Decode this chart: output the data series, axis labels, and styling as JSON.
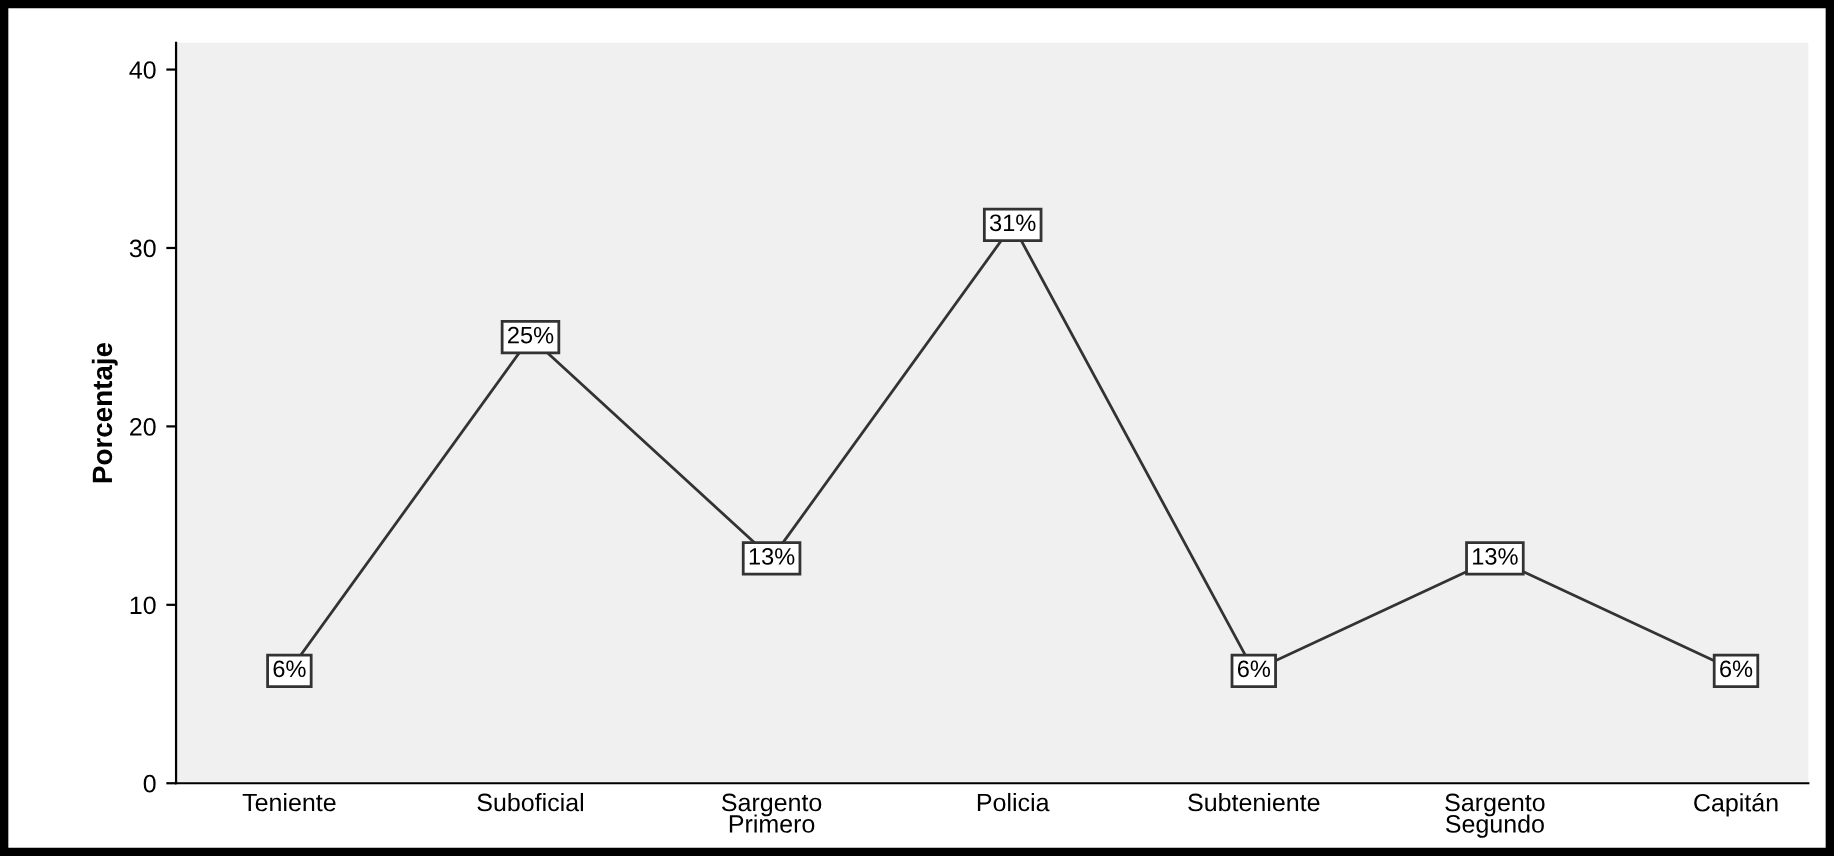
{
  "chart_data": {
    "type": "line",
    "ylabel": "Porcentaje",
    "categories": [
      "Teniente",
      "Suboficial",
      "Sargento\nPrimero",
      "Policia",
      "Subteniente",
      "Sargento\nSegundo",
      "Capitán"
    ],
    "values": [
      6.3,
      25,
      12.6,
      31.3,
      6.3,
      12.6,
      6.3
    ],
    "value_labels": [
      "6%",
      "25%",
      "13%",
      "31%",
      "6%",
      "13%",
      "6%"
    ],
    "color": "#333333",
    "ylim": [
      0,
      41.5
    ],
    "yticks": [
      0,
      10,
      20,
      30,
      40
    ],
    "grid": false,
    "legend": false,
    "marker": "square",
    "line_style": "solid"
  }
}
